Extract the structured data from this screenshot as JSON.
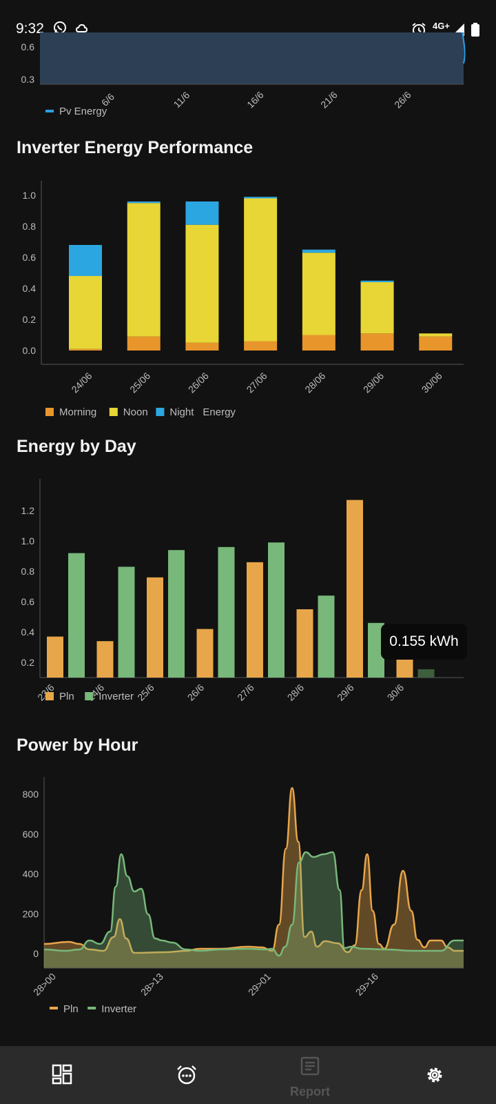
{
  "status_bar": {
    "time": "9:32",
    "network": "4G+",
    "icons": [
      "whatsapp-icon",
      "cloud-icon",
      "alarm-icon",
      "signal-icon",
      "battery-icon"
    ]
  },
  "pv_chart": {
    "chart_data": {
      "type": "area",
      "y_ticks": [
        "0.6",
        "0.3"
      ],
      "x_ticks": [
        "6/6",
        "11/6",
        "16/6",
        "21/6",
        "26/6"
      ],
      "series": [
        {
          "name": "Pv Energy",
          "color": "#2e9fe6"
        }
      ],
      "legend_position": "bottom-left"
    }
  },
  "inverter_section": {
    "title": "Inverter Energy Performance"
  },
  "inverter_chart": {
    "chart_data": {
      "type": "bar",
      "stacked": true,
      "categories": [
        "24/06",
        "25/06",
        "26/06",
        "27/06",
        "28/06",
        "29/06",
        "30/06"
      ],
      "series": [
        {
          "name": "Morning",
          "color": "#e8962b",
          "values": [
            0.01,
            0.09,
            0.05,
            0.06,
            0.1,
            0.11,
            0.09
          ]
        },
        {
          "name": "Noon",
          "color": "#e7d636",
          "values": [
            0.47,
            0.86,
            0.76,
            0.92,
            0.53,
            0.33,
            0.02
          ]
        },
        {
          "name": "Night",
          "color": "#2ca6e0",
          "values": [
            0.2,
            0.01,
            0.15,
            0.01,
            0.02,
            0.01,
            0.0
          ]
        }
      ],
      "extra_legend": "Energy",
      "ylim": [
        0,
        1.05
      ],
      "y_ticks": [
        0.0,
        0.2,
        0.4,
        0.6,
        0.8,
        1.0
      ],
      "legend_position": "bottom-left"
    }
  },
  "day_section": {
    "title": "Energy by Day"
  },
  "day_chart": {
    "chart_data": {
      "type": "bar",
      "categories": [
        "23/6",
        "24/6",
        "25/6",
        "26/6",
        "27/6",
        "28/6",
        "29/6",
        "30/6"
      ],
      "series": [
        {
          "name": "Pln",
          "color": "#e8a64a",
          "values": [
            0.37,
            0.34,
            0.76,
            0.42,
            0.86,
            0.55,
            1.27,
            0.35
          ]
        },
        {
          "name": "Inverter",
          "color": "#78b87a",
          "values": [
            0.92,
            0.83,
            0.94,
            0.96,
            0.99,
            0.64,
            0.46,
            0.155
          ]
        }
      ],
      "ylim": [
        0.1,
        1.4
      ],
      "y_ticks": [
        0.2,
        0.4,
        0.6,
        0.8,
        1.0,
        1.2
      ],
      "legend_position": "bottom-left",
      "tooltip": "0.155 kWh"
    }
  },
  "hour_section": {
    "title": "Power by Hour"
  },
  "hour_chart": {
    "chart_data": {
      "type": "area",
      "x_ticks": [
        "28>00",
        "28>13",
        "29>01",
        "29>16"
      ],
      "y_ticks": [
        0,
        200,
        400,
        600,
        800
      ],
      "ylim": [
        -80,
        900
      ],
      "series": [
        {
          "name": "Pln",
          "color": "#e8a64a"
        },
        {
          "name": "Inverter",
          "color": "#78b87a"
        }
      ],
      "legend_position": "bottom-left"
    }
  },
  "bottom_nav": {
    "items": [
      {
        "icon": "dashboard-icon",
        "label": ""
      },
      {
        "icon": "alarm-more-icon",
        "label": ""
      },
      {
        "icon": "report-icon",
        "label": "Report"
      },
      {
        "icon": "settings-icon",
        "label": ""
      }
    ]
  }
}
